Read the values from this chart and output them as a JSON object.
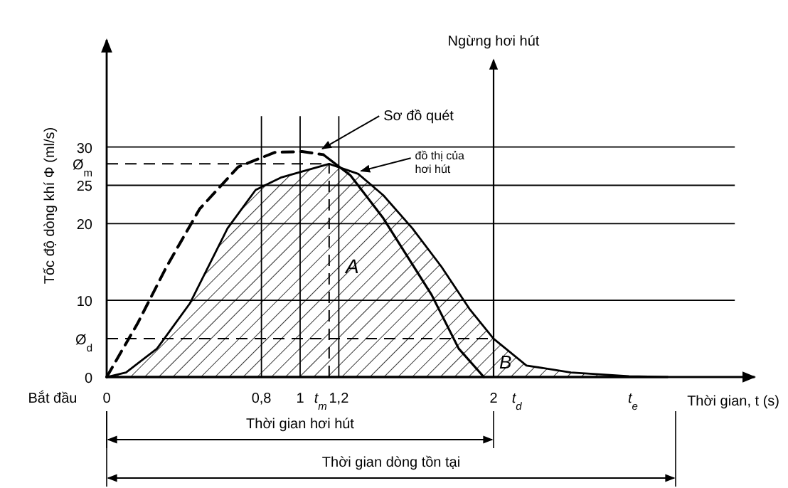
{
  "chart_data": {
    "type": "line",
    "ylabel": "Tốc độ dòng khí Φ (ml/s)",
    "xlabel": "Thời gian, t (s)",
    "xlim": [
      0,
      3.35
    ],
    "ylim": [
      0,
      41
    ],
    "xticks": [
      0,
      {
        "value": 0.8,
        "label": "0,8"
      },
      1,
      {
        "value": 1.2,
        "label": "1,2"
      },
      2,
      {
        "value": 2.12,
        "label": "t$_{d}$"
      },
      {
        "value": 2.72,
        "label": "t$_{e}$"
      }
    ],
    "yticks": [
      0,
      10,
      20,
      25,
      30
    ],
    "grid": "y",
    "series": [
      {
        "type": "area",
        "color": "#000000",
        "x": [
          0,
          0.1,
          0.26,
          0.43,
          0.625,
          0.77,
          0.9,
          1.01,
          1.15,
          1.3,
          1.43,
          1.58,
          1.73,
          1.875,
          2,
          2.17,
          2.4,
          2.7,
          2.9
        ],
        "values": [
          0,
          0.6,
          3.7,
          9.6,
          19.4,
          24.4,
          26,
          26.8,
          27.8,
          26.5,
          23.7,
          19.4,
          14.4,
          8.9,
          5,
          1.5,
          0.6,
          0.1,
          0
        ]
      },
      {
        "line_style": "dashed",
        "color": "#000000",
        "x": [
          0,
          0.16,
          0.31,
          0.48,
          0.68,
          0.87,
          1.01,
          1.12
        ],
        "values": [
          0,
          7,
          14.4,
          21.9,
          27.4,
          29.3,
          29.4,
          29
        ]
      },
      {
        "color": "#000000",
        "x": [
          1.12,
          1.26,
          1.43,
          1.68,
          1.82,
          1.95
        ],
        "values": [
          29,
          26.3,
          20.7,
          10.7,
          3.7,
          0
        ]
      }
    ],
    "ref_lines": [
      {
        "axis": "y",
        "value": 27.8,
        "label": "Ø$_{m}$",
        "line_style": "dashed"
      },
      {
        "axis": "y",
        "value": 5,
        "label": "Ø$_{d}$",
        "line_style": "dashed"
      },
      {
        "axis": "x",
        "value": 1.15,
        "label": "t$_{m}$",
        "line_style": "dashed"
      },
      {
        "axis": "x",
        "value": 2,
        "label": "Ngừng hơi hút"
      },
      {
        "axis": "x",
        "value": 0.8
      },
      {
        "axis": "x",
        "value": 1
      },
      {
        "axis": "x",
        "value": 1.2
      }
    ],
    "annotations": [
      {
        "text": "Sơ đồ quét",
        "x": 1.1,
        "y": 29.4
      },
      {
        "text": "đồ thị của hơi hút",
        "x": 1.3,
        "y": 26.5
      },
      "A",
      "B",
      {
        "text": "Bắt đầu",
        "x": 0,
        "y": 0
      },
      "Thời gian hơi hút",
      "Thời gian dòng tồn tại"
    ]
  }
}
